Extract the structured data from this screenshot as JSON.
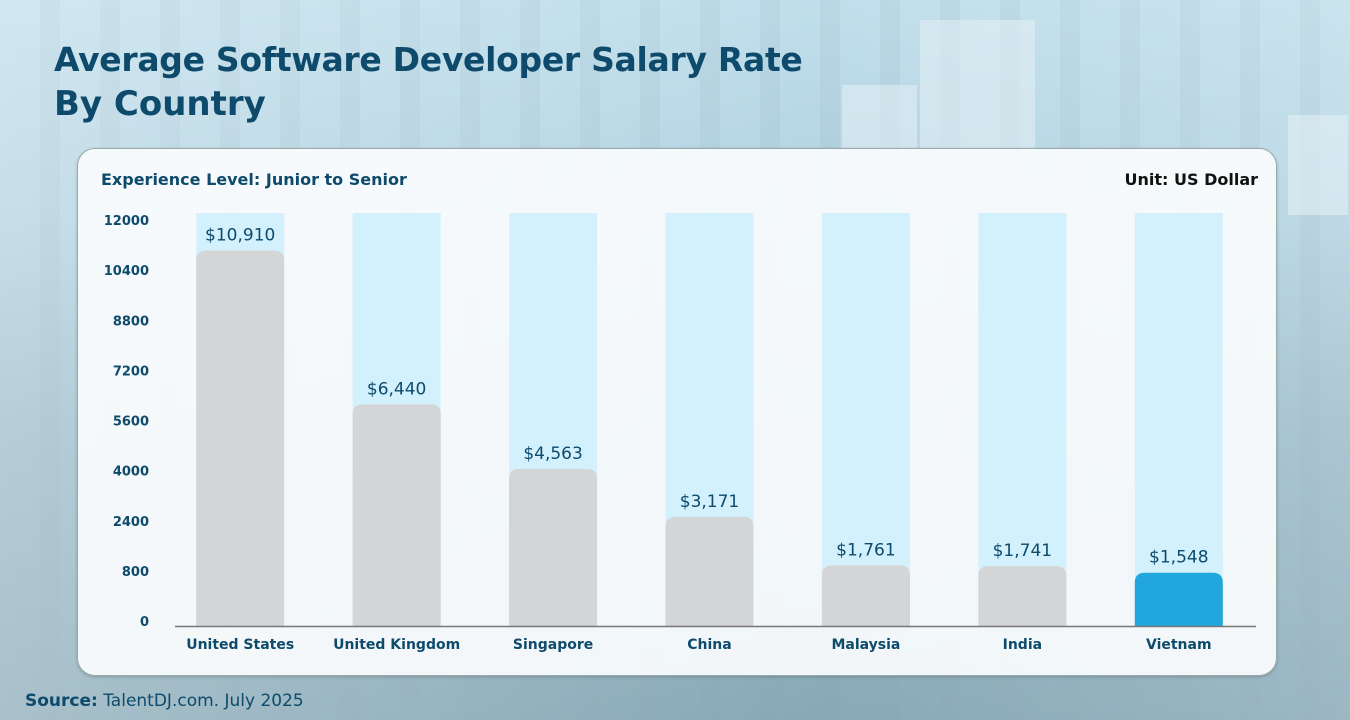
{
  "header": {
    "title": "Average Software Developer Salary Rate",
    "subtitle": "By Country"
  },
  "card": {
    "experience_label": "Experience Level: Junior to Senior",
    "unit_label": "Unit: US Dollar"
  },
  "source": {
    "label": "Source:",
    "text": "TalentDJ.com. July 2025"
  },
  "colors": {
    "title": "#0d4a6b",
    "bar_background": "#d3f1fd",
    "bar_default": "#d4d5d7",
    "bar_highlight": "#21a6de"
  },
  "chart_data": {
    "type": "bar",
    "categories": [
      "United States",
      "United Kingdom",
      "Singapore",
      "China",
      "Malaysia",
      "India",
      "Vietnam"
    ],
    "values": [
      10910,
      6440,
      4563,
      3171,
      1761,
      1741,
      1548
    ],
    "data_labels": [
      "$10,910",
      "$6,440",
      "$4,563",
      "$3,171",
      "$1,761",
      "$1,741",
      "$1,548"
    ],
    "highlight": "Vietnam",
    "y_tick_labels": [
      "0",
      "800",
      "2400",
      "4000",
      "5600",
      "7200",
      "8800",
      "10400",
      "12000"
    ],
    "ylim": [
      0,
      12000
    ],
    "grid": false,
    "title": "Average Software Developer Salary Rate",
    "xlabel": "",
    "ylabel": ""
  }
}
